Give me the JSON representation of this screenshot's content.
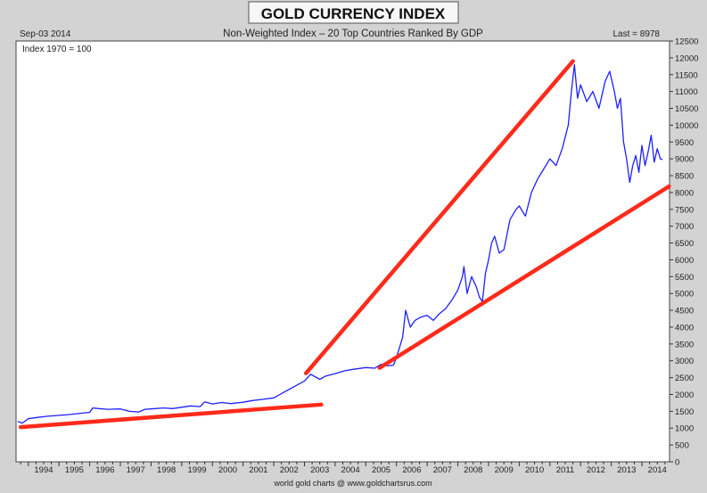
{
  "chart_data": {
    "type": "line",
    "title": "GOLD CURRENCY INDEX",
    "subtitle": "Non-Weighted Index – 20 Top Countries Ranked By GDP",
    "date_label": "Sep-03  2014",
    "last_label": "Last = 8978",
    "note": "Index 1970 = 100",
    "source": "world gold charts @ www.goldchartsrus.com",
    "xlim": [
      1993.6,
      2014.9
    ],
    "ylim": [
      0,
      12500
    ],
    "x_ticks": [
      1994,
      1995,
      1996,
      1997,
      1998,
      1999,
      2000,
      2001,
      2002,
      2003,
      2004,
      2005,
      2006,
      2007,
      2008,
      2009,
      2010,
      2011,
      2012,
      2013,
      2014
    ],
    "y_ticks": [
      0,
      500,
      1000,
      1500,
      2000,
      2500,
      3000,
      3500,
      4000,
      4500,
      5000,
      5500,
      6000,
      6500,
      7000,
      7500,
      8000,
      8500,
      9000,
      9500,
      10000,
      10500,
      11000,
      11500,
      12000,
      12500
    ],
    "grid": false,
    "series": [
      {
        "color": "#1f1fff",
        "x": [
          1993.65,
          1993.8,
          1994.0,
          1994.3,
          1994.6,
          1995.0,
          1995.3,
          1995.6,
          1996.0,
          1996.1,
          1996.3,
          1996.6,
          1997.0,
          1997.3,
          1997.6,
          1997.8,
          1998.0,
          1998.4,
          1998.7,
          1999.0,
          1999.3,
          1999.6,
          1999.75,
          2000.0,
          2000.3,
          2000.6,
          2001.0,
          2001.3,
          2001.6,
          2002.0,
          2002.3,
          2002.6,
          2002.9,
          2003.0,
          2003.2,
          2003.5,
          2003.7,
          2004.0,
          2004.3,
          2004.6,
          2005.0,
          2005.3,
          2005.5,
          2005.7,
          2005.9,
          2006.0,
          2006.1,
          2006.2,
          2006.3,
          2006.45,
          2006.6,
          2006.8,
          2007.0,
          2007.2,
          2007.4,
          2007.6,
          2007.8,
          2008.0,
          2008.15,
          2008.2,
          2008.3,
          2008.45,
          2008.6,
          2008.7,
          2008.8,
          2008.9,
          2009.0,
          2009.1,
          2009.2,
          2009.35,
          2009.5,
          2009.7,
          2009.9,
          2010.0,
          2010.2,
          2010.4,
          2010.6,
          2010.8,
          2011.0,
          2011.2,
          2011.4,
          2011.6,
          2011.7,
          2011.8,
          2011.9,
          2012.0,
          2012.2,
          2012.4,
          2012.6,
          2012.8,
          2012.95,
          2013.1,
          2013.2,
          2013.3,
          2013.4,
          2013.5,
          2013.6,
          2013.7,
          2013.8,
          2013.9,
          2014.0,
          2014.1,
          2014.2,
          2014.3,
          2014.4,
          2014.5,
          2014.6,
          2014.67
        ],
        "values": [
          1200,
          1150,
          1280,
          1320,
          1350,
          1380,
          1400,
          1430,
          1470,
          1600,
          1580,
          1560,
          1570,
          1500,
          1480,
          1560,
          1570,
          1600,
          1580,
          1620,
          1660,
          1640,
          1780,
          1720,
          1760,
          1730,
          1770,
          1820,
          1850,
          1900,
          2050,
          2200,
          2350,
          2400,
          2600,
          2450,
          2550,
          2620,
          2700,
          2750,
          2800,
          2780,
          2900,
          2850,
          2870,
          3100,
          3400,
          3700,
          4500,
          4000,
          4200,
          4300,
          4350,
          4200,
          4400,
          4550,
          4800,
          5100,
          5500,
          5800,
          5000,
          5500,
          5200,
          4900,
          4750,
          5600,
          6000,
          6500,
          6700,
          6200,
          6300,
          7200,
          7500,
          7600,
          7300,
          8000,
          8400,
          8700,
          9000,
          8800,
          9300,
          10000,
          11000,
          11800,
          10800,
          11200,
          10700,
          11000,
          10500,
          11300,
          11600,
          11000,
          10500,
          10800,
          9500,
          9000,
          8300,
          8800,
          9100,
          8600,
          9400,
          8800,
          9200,
          9700,
          8900,
          9300,
          9000,
          8978
        ]
      }
    ],
    "trendlines": [
      {
        "color": "#ff2a1a",
        "x": [
          1993.75,
          2003.55
        ],
        "values": [
          1030,
          1700
        ]
      },
      {
        "color": "#ff2a1a",
        "x": [
          2003.05,
          2011.75
        ],
        "values": [
          2630,
          11900
        ]
      },
      {
        "color": "#ff2a1a",
        "x": [
          2005.45,
          2014.88
        ],
        "values": [
          2790,
          8180
        ]
      }
    ]
  }
}
